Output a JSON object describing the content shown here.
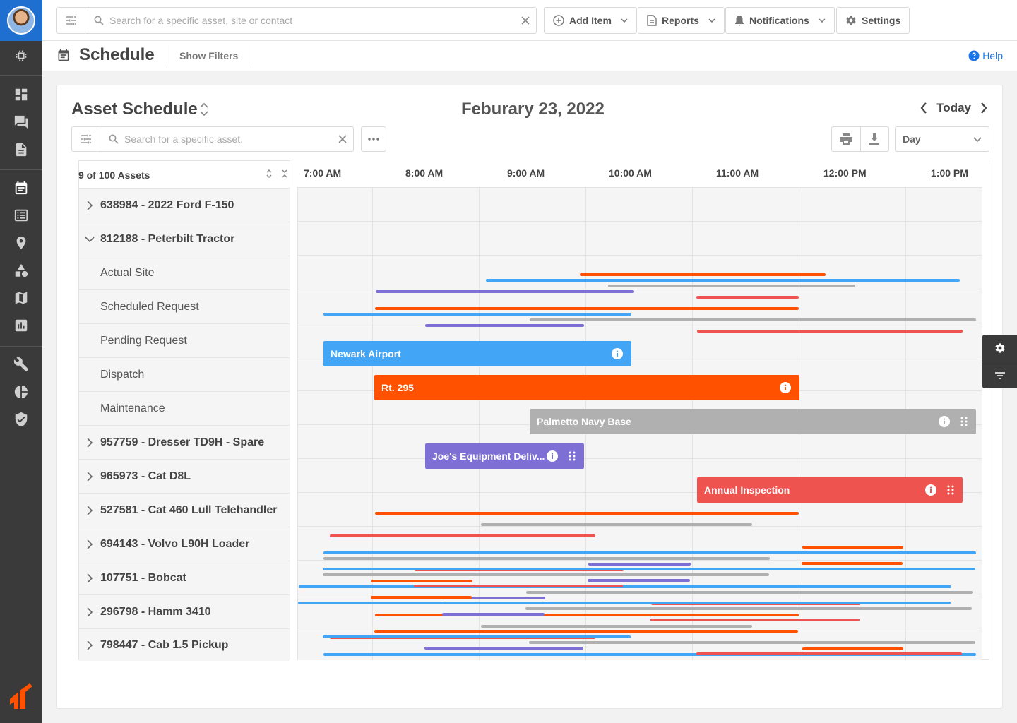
{
  "topbar": {
    "search_placeholder": "Search for a specific asset, site or contact",
    "add_item": "Add Item",
    "reports": "Reports",
    "notifications": "Notifications",
    "settings": "Settings"
  },
  "page": {
    "title": "Schedule",
    "show_filters": "Show Filters",
    "help": "Help"
  },
  "schedule": {
    "title": "Asset Schedule",
    "date": "Feburary 23, 2022",
    "today": "Today",
    "asset_search_placeholder": "Search for a specific asset.",
    "view": "Day",
    "asset_count": "9 of 100 Assets",
    "time_labels": [
      "7:00 AM",
      "8:00 AM",
      "9:00 AM",
      "10:00 AM",
      "11:00 AM",
      "12:00 PM",
      "1:00 PM"
    ]
  },
  "assets": [
    {
      "label": "638984 - 2022 Ford F-150"
    },
    {
      "label": "812188 - Peterbilt Tractor"
    },
    {
      "label": "Actual Site"
    },
    {
      "label": "Scheduled Request"
    },
    {
      "label": "Pending Request"
    },
    {
      "label": "Dispatch"
    },
    {
      "label": "Maintenance"
    },
    {
      "label": "957759 - Dresser TD9H - Spare"
    },
    {
      "label": "965973 - Cat D8L"
    },
    {
      "label": "527581 - Cat 460 Lull Telehandler"
    },
    {
      "label": "694143 - Volvo L90H Loader"
    },
    {
      "label": "107751 - Bobcat"
    },
    {
      "label": "296798 - Hamm 3410"
    },
    {
      "label": "798447 - Cab 1.5 Pickup"
    }
  ],
  "blocks": {
    "actual_site": "Newark Airport",
    "scheduled_request": "Rt. 295",
    "pending_request": "Palmetto Navy Base",
    "dispatch": "Joe's Equipment Deliv...",
    "maintenance": "Annual Inspection"
  },
  "colors": {
    "actual_site": "#42a5f5",
    "scheduled_request": "#ff5100",
    "pending_request": "#b0b0b0",
    "dispatch": "#7e6fd4",
    "maintenance": "#ef5350",
    "rail": "#3a3a3a",
    "link": "#1a73e8"
  }
}
